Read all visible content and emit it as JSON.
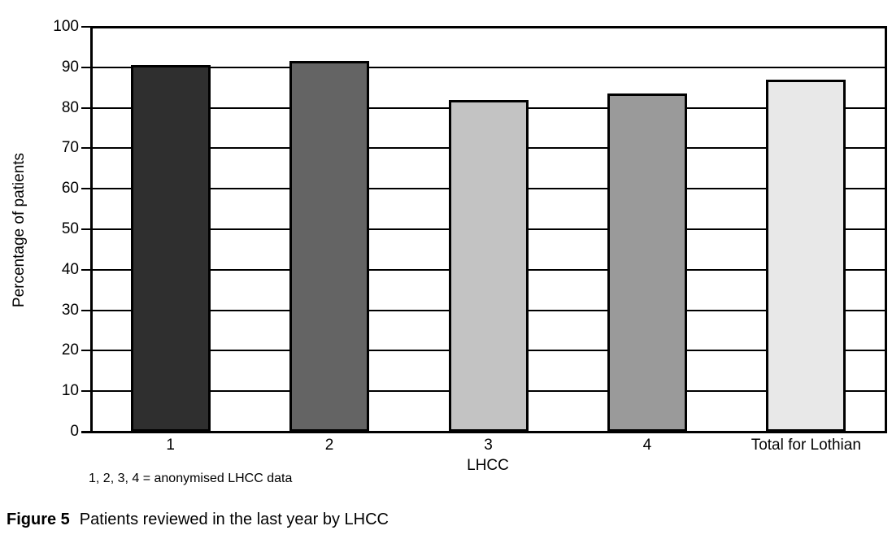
{
  "figure": {
    "note": "1, 2, 3, 4 = anonymised LHCC data",
    "caption_label": "Figure 5",
    "caption_text": "Patients reviewed in the last year by LHCC"
  },
  "chart_data": {
    "type": "bar",
    "categories": [
      "1",
      "2",
      "3",
      "4",
      "Total for Lothian"
    ],
    "values": [
      90.5,
      91.5,
      82,
      83.5,
      87
    ],
    "bar_colors": [
      "#2f2f2f",
      "#646464",
      "#c3c3c3",
      "#9a9a9a",
      "#e8e8e8"
    ],
    "title": "",
    "xlabel": "LHCC",
    "ylabel": "Percentage of patients",
    "ylim": [
      0,
      100
    ],
    "ytick_step": 10,
    "grid": "horizontal",
    "legend": "none",
    "axis_color": "#000000",
    "bar_border_color": "#000000"
  }
}
